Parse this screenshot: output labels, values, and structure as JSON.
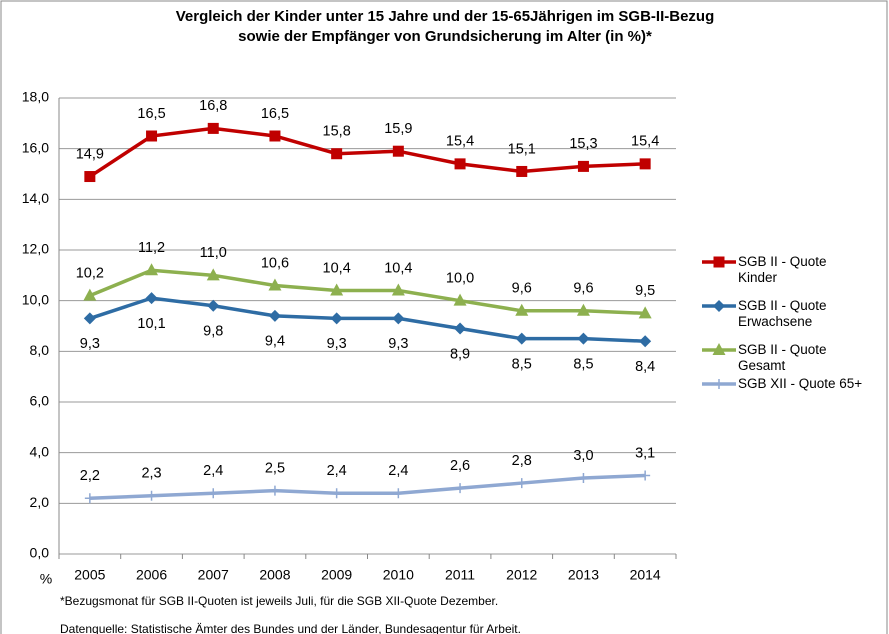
{
  "chart_data": {
    "type": "line",
    "title": [
      "Vergleich der Kinder unter 15 Jahre und der 15-65Jährigen im SGB-II-Bezug",
      "sowie der Empfänger von Grundsicherung im Alter (in %)*"
    ],
    "ylabel": "%",
    "categories": [
      "2005",
      "2006",
      "2007",
      "2008",
      "2009",
      "2010",
      "2011",
      "2012",
      "2013",
      "2014"
    ],
    "series": [
      {
        "name": "SGB II - Quote Kinder",
        "color": "#c00000",
        "marker": "square",
        "label_position": "above",
        "values": [
          14.9,
          16.5,
          16.8,
          16.5,
          15.8,
          15.9,
          15.4,
          15.1,
          15.3,
          15.4
        ],
        "value_labels": [
          "14,9",
          "16,5",
          "16,8",
          "16,5",
          "15,8",
          "15,9",
          "15,4",
          "15,1",
          "15,3",
          "15,4"
        ]
      },
      {
        "name": "SGB II - Quote Erwachsene",
        "color": "#2e6ca4",
        "marker": "diamond",
        "label_position": "below",
        "values": [
          9.3,
          10.1,
          9.8,
          9.4,
          9.3,
          9.3,
          8.9,
          8.5,
          8.5,
          8.4
        ],
        "value_labels": [
          "9,3",
          "10,1",
          "9,8",
          "9,4",
          "9,3",
          "9,3",
          "8,9",
          "8,5",
          "8,5",
          "8,4"
        ]
      },
      {
        "name": "SGB II - Quote Gesamt",
        "color": "#8db04f",
        "marker": "triangle",
        "label_position": "above",
        "values": [
          10.2,
          11.2,
          11.0,
          10.6,
          10.4,
          10.4,
          10.0,
          9.6,
          9.6,
          9.5
        ],
        "value_labels": [
          "10,2",
          "11,2",
          "11,0",
          "10,6",
          "10,4",
          "10,4",
          "10,0",
          "9,6",
          "9,6",
          "9,5"
        ]
      },
      {
        "name": "SGB XII - Quote 65+",
        "color": "#8fa8d2",
        "marker": "plus",
        "label_position": "above",
        "values": [
          2.2,
          2.3,
          2.4,
          2.5,
          2.4,
          2.4,
          2.6,
          2.8,
          3.0,
          3.1
        ],
        "value_labels": [
          "2,2",
          "2,3",
          "2,4",
          "2,5",
          "2,4",
          "2,4",
          "2,6",
          "2,8",
          "3,0",
          "3,1"
        ]
      }
    ],
    "ylim": [
      0,
      18
    ],
    "yticks": [
      {
        "value": 0,
        "label": "0,0"
      },
      {
        "value": 2,
        "label": "2,0"
      },
      {
        "value": 4,
        "label": "4,0"
      },
      {
        "value": 6,
        "label": "6,0"
      },
      {
        "value": 8,
        "label": "8,0"
      },
      {
        "value": 10,
        "label": "10,0"
      },
      {
        "value": 12,
        "label": "12,0"
      },
      {
        "value": 14,
        "label": "14,0"
      },
      {
        "value": 16,
        "label": "16,0"
      },
      {
        "value": 18,
        "label": "18,0"
      }
    ],
    "grid": true,
    "legend": "right",
    "notes": [
      "*Bezugsmonat für SGB II-Quoten ist jeweils Juli, für die SGB XII-Quote Dezember.",
      "Datenquelle: Statistische Ämter des Bundes und der Länder, Bundesagentur für Arbeit."
    ]
  }
}
